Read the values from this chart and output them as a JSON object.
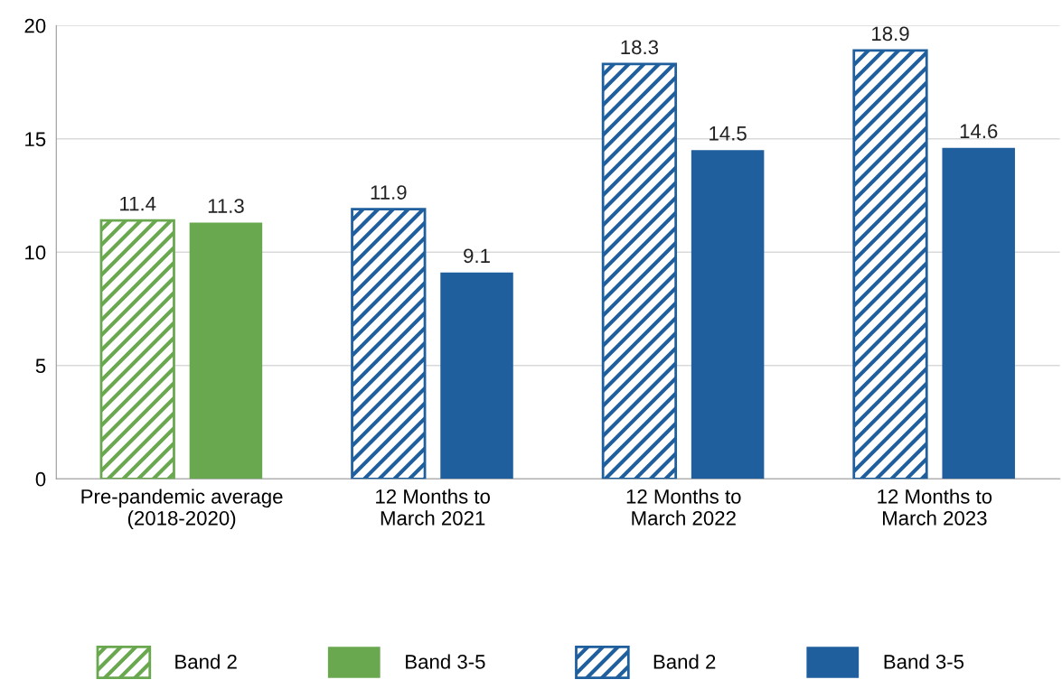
{
  "chart_data": {
    "type": "bar",
    "categories": [
      "Pre-pandemic average\n(2018-2020)",
      "12 Months to\nMarch 2021",
      "12 Months to\nMarch 2022",
      "12 Months to\nMarch 2023"
    ],
    "series": [
      {
        "name": "Band 2",
        "color": "#6aa84f",
        "values": [
          11.4,
          null,
          null,
          null
        ]
      },
      {
        "name": "Band 3-5",
        "color": "#6aa84f",
        "values": [
          11.3,
          null,
          null,
          null
        ]
      },
      {
        "name": "Band 2",
        "color": "#1f5f9e",
        "values": [
          null,
          11.9,
          18.3,
          18.9
        ]
      },
      {
        "name": "Band 3-5",
        "color": "#1f5f9e",
        "values": [
          null,
          9.1,
          14.5,
          14.6
        ]
      }
    ],
    "ylim": [
      0,
      20
    ],
    "yticks": [
      0,
      5,
      10,
      15,
      20
    ],
    "grid": "y",
    "legend": "bottom",
    "data_labels": true
  }
}
